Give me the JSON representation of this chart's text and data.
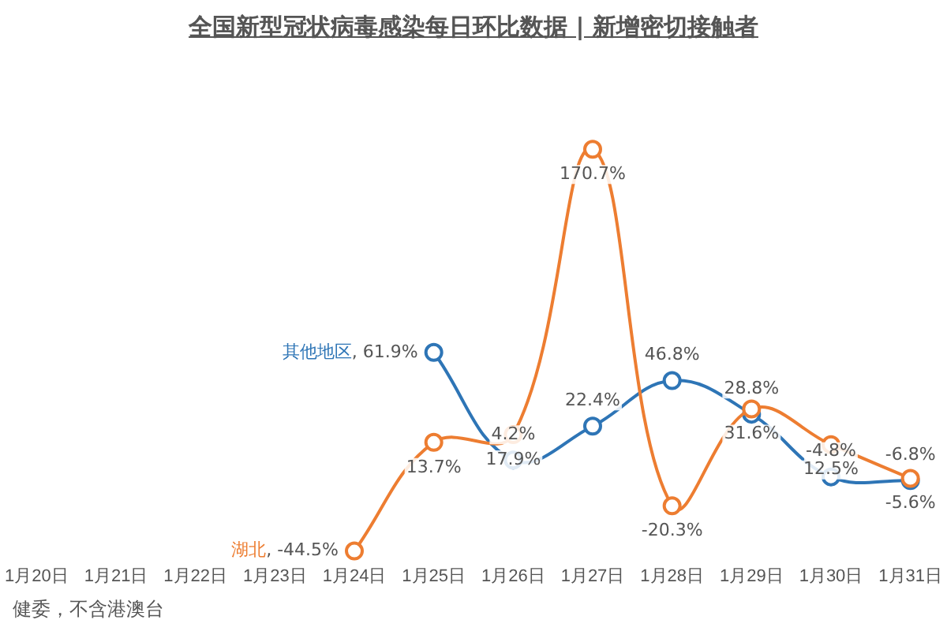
{
  "chart_data": {
    "type": "line",
    "title": "全国新型冠状病毒感染每日环比数据 | 新增密切接触者",
    "categories": [
      "1月20日",
      "1月21日",
      "1月22日",
      "1月23日",
      "1月24日",
      "1月25日",
      "1月26日",
      "1月27日",
      "1月28日",
      "1月29日",
      "1月30日",
      "1月31日"
    ],
    "series": [
      {
        "name": "湖北",
        "color": "#ed7d31",
        "values": [
          null,
          null,
          null,
          null,
          -44.5,
          13.7,
          17.9,
          170.7,
          -20.3,
          31.6,
          12.5,
          -5.6
        ],
        "value_labels": [
          null,
          null,
          null,
          null,
          ", -44.5%",
          "13.7%",
          "17.9%",
          "170.7%",
          "-20.3%",
          "31.6%",
          "12.5%",
          "-5.6%"
        ]
      },
      {
        "name": "其他地区",
        "color": "#2e75b6",
        "values": [
          null,
          null,
          null,
          null,
          null,
          61.9,
          4.2,
          22.4,
          46.8,
          28.8,
          -4.8,
          -6.8
        ],
        "value_labels": [
          null,
          null,
          null,
          null,
          null,
          ", 61.9%",
          "4.2%",
          "22.4%",
          "46.8%",
          "28.8%",
          "-4.8%",
          "-6.8%"
        ]
      }
    ],
    "marker": "circle",
    "grid": false,
    "legend": false,
    "tick_labels": "x",
    "annotations": [
      "健委，不含港澳台"
    ]
  }
}
